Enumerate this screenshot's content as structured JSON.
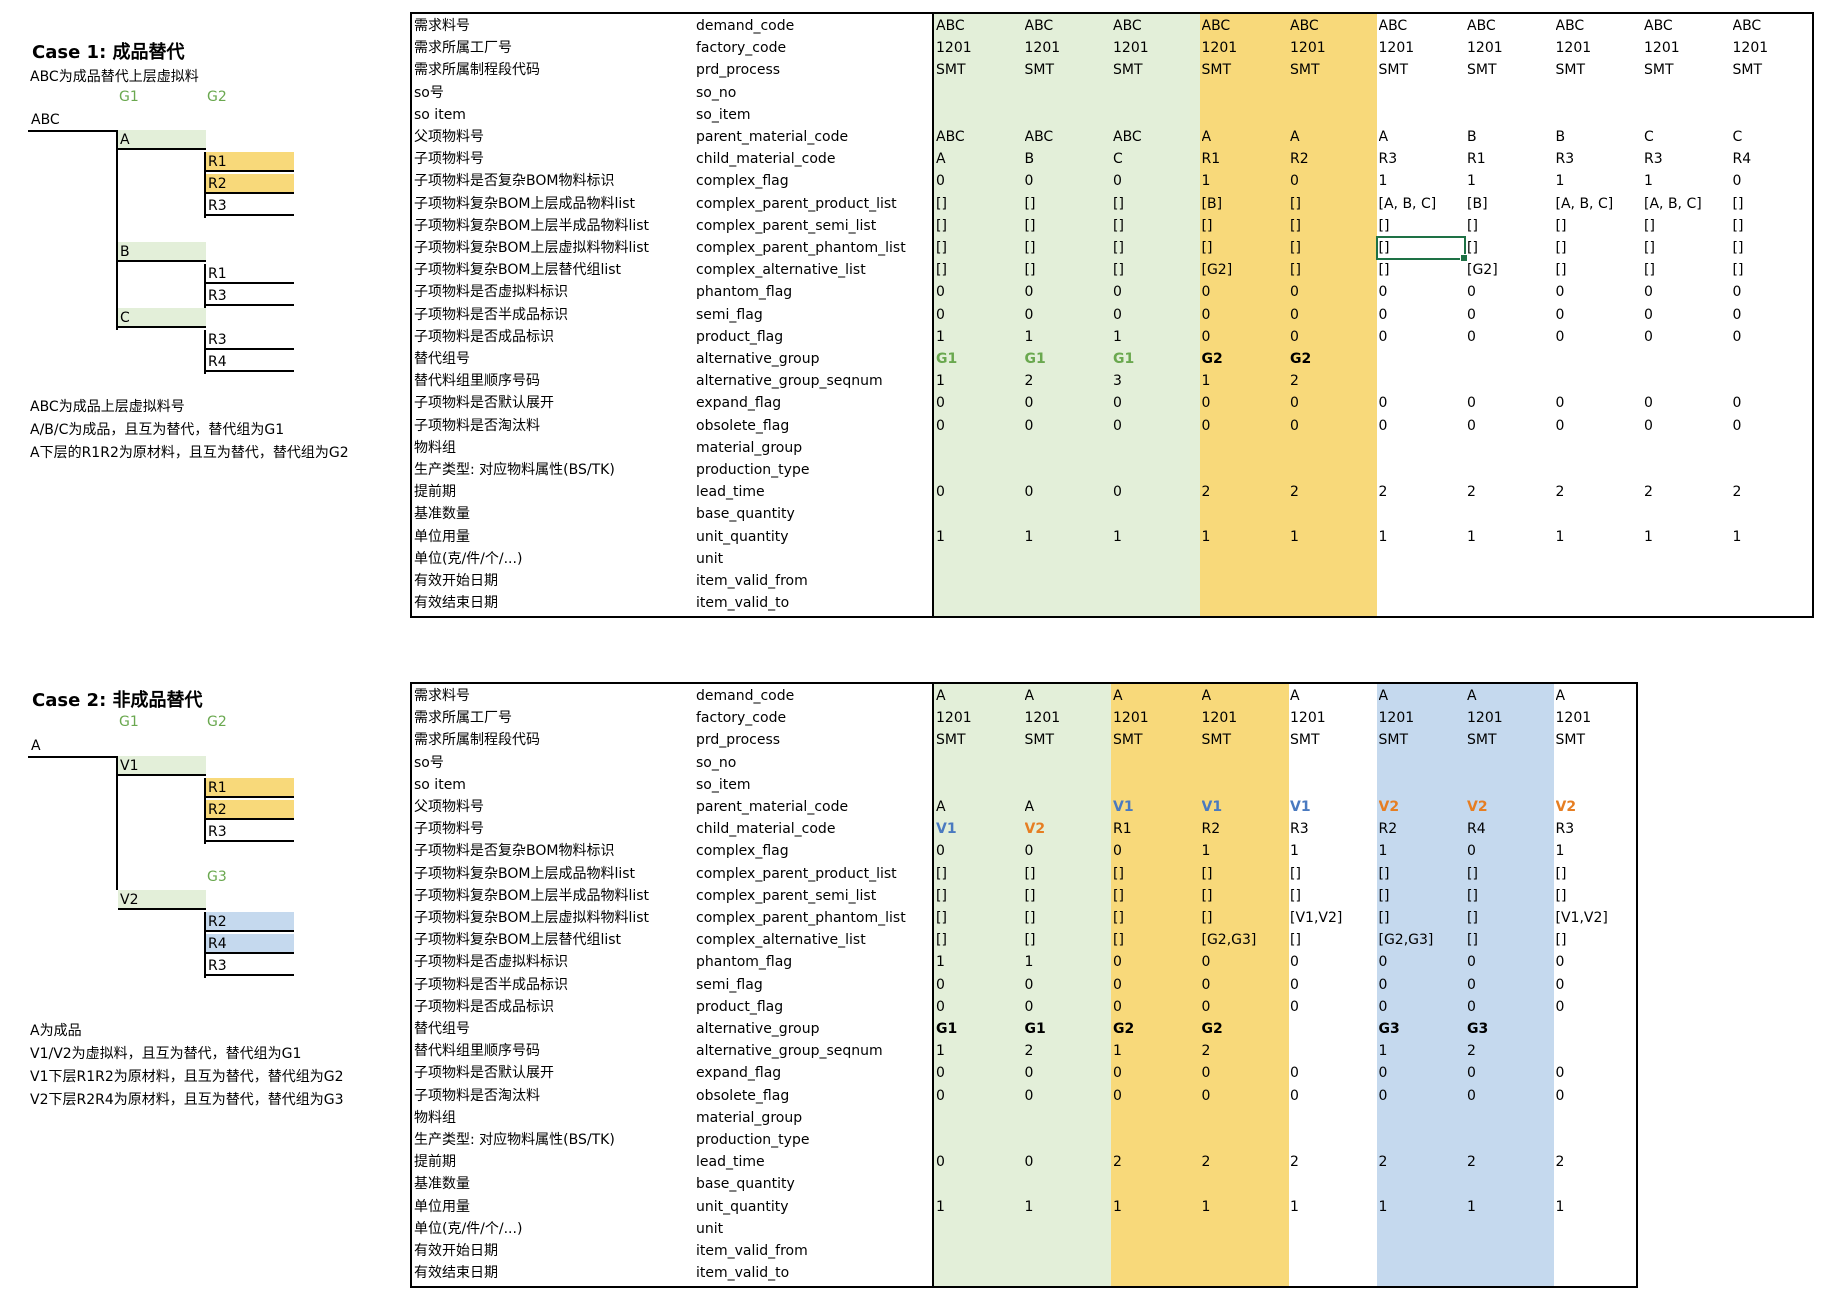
{
  "case1": {
    "title": "Case 1: 成品替代",
    "subtitle": "ABC为成品替代上层虚拟料",
    "group_labels": [
      "G1",
      "G2"
    ],
    "tree": {
      "root": "ABC",
      "nodes": [
        {
          "label": "A",
          "level": 1
        },
        {
          "label": "R1",
          "level": 2
        },
        {
          "label": "R2",
          "level": 2
        },
        {
          "label": "R3",
          "level": 2
        },
        {
          "label": "B",
          "level": 1
        },
        {
          "label": "R1",
          "level": 2
        },
        {
          "label": "R3",
          "level": 2
        },
        {
          "label": "C",
          "level": 1
        },
        {
          "label": "R3",
          "level": 2
        },
        {
          "label": "R4",
          "level": 2
        }
      ]
    },
    "notes": [
      "ABC为成品上层虚拟料号",
      "A/B/C为成品，且互为替代，替代组为G1",
      "A下层的R1R2为原材料，且互为替代，替代组为G2"
    ],
    "colors": {
      "green": "#e3efd9",
      "orange": "#f8d97a"
    },
    "columns": [
      [
        "ABC",
        "1201",
        "SMT",
        "",
        "",
        "ABC",
        "A",
        "0",
        "[]",
        "[]",
        "[]",
        "[]",
        "0",
        "0",
        "1",
        "G1",
        "1",
        "0",
        "0",
        "",
        "",
        "0",
        "",
        "1",
        "",
        "",
        ""
      ],
      [
        "ABC",
        "1201",
        "SMT",
        "",
        "",
        "ABC",
        "B",
        "0",
        "[]",
        "[]",
        "[]",
        "[]",
        "0",
        "0",
        "1",
        "G1",
        "2",
        "0",
        "0",
        "",
        "",
        "0",
        "",
        "1",
        "",
        "",
        ""
      ],
      [
        "ABC",
        "1201",
        "SMT",
        "",
        "",
        "ABC",
        "C",
        "0",
        "[]",
        "[]",
        "[]",
        "[]",
        "0",
        "0",
        "1",
        "G1",
        "3",
        "0",
        "0",
        "",
        "",
        "0",
        "",
        "1",
        "",
        "",
        ""
      ],
      [
        "ABC",
        "1201",
        "SMT",
        "",
        "",
        "A",
        "R1",
        "1",
        "[B]",
        "[]",
        "[]",
        "[G2]",
        "0",
        "0",
        "0",
        "G2",
        "1",
        "0",
        "0",
        "",
        "",
        "2",
        "",
        "1",
        "",
        "",
        ""
      ],
      [
        "ABC",
        "1201",
        "SMT",
        "",
        "",
        "A",
        "R2",
        "0",
        "[]",
        "[]",
        "[]",
        "[]",
        "0",
        "0",
        "0",
        "G2",
        "2",
        "0",
        "0",
        "",
        "",
        "2",
        "",
        "1",
        "",
        "",
        ""
      ],
      [
        "ABC",
        "1201",
        "SMT",
        "",
        "",
        "A",
        "R3",
        "1",
        "[A, B, C]",
        "[]",
        "[]",
        "[]",
        "0",
        "0",
        "0",
        "",
        "",
        "0",
        "0",
        "",
        "",
        "2",
        "",
        "1",
        "",
        "",
        ""
      ],
      [
        "ABC",
        "1201",
        "SMT",
        "",
        "",
        "B",
        "R1",
        "1",
        "[B]",
        "[]",
        "[]",
        "[G2]",
        "0",
        "0",
        "0",
        "",
        "",
        "0",
        "0",
        "",
        "",
        "2",
        "",
        "1",
        "",
        "",
        ""
      ],
      [
        "ABC",
        "1201",
        "SMT",
        "",
        "",
        "B",
        "R3",
        "1",
        "[A, B, C]",
        "[]",
        "[]",
        "[]",
        "0",
        "0",
        "0",
        "",
        "",
        "0",
        "0",
        "",
        "",
        "2",
        "",
        "1",
        "",
        "",
        ""
      ],
      [
        "ABC",
        "1201",
        "SMT",
        "",
        "",
        "C",
        "R3",
        "1",
        "[A, B, C]",
        "[]",
        "[]",
        "[]",
        "0",
        "0",
        "0",
        "",
        "",
        "0",
        "0",
        "",
        "",
        "2",
        "",
        "1",
        "",
        "",
        ""
      ],
      [
        "ABC",
        "1201",
        "SMT",
        "",
        "",
        "C",
        "R4",
        "0",
        "[]",
        "[]",
        "[]",
        "[]",
        "0",
        "0",
        "0",
        "",
        "",
        "0",
        "0",
        "",
        "",
        "2",
        "",
        "1",
        "",
        "",
        ""
      ]
    ]
  },
  "case2": {
    "title": "Case 2: 非成品替代",
    "group_labels": [
      "G1",
      "G2",
      "G3"
    ],
    "tree": {
      "root": "A",
      "nodes": [
        {
          "label": "V1",
          "level": 1
        },
        {
          "label": "R1",
          "level": 2
        },
        {
          "label": "R2",
          "level": 2
        },
        {
          "label": "R3",
          "level": 2
        },
        {
          "label": "V2",
          "level": 1
        },
        {
          "label": "R2",
          "level": 2
        },
        {
          "label": "R4",
          "level": 2
        },
        {
          "label": "R3",
          "level": 2
        }
      ]
    },
    "notes": [
      "A为成品",
      "V1/V2为虚拟料，且互为替代，替代组为G1",
      "V1下层R1R2为原材料，且互为替代，替代组为G2",
      "V2下层R2R4为原材料，且互为替代，替代组为G3"
    ],
    "colors": {
      "green": "#e3efd9",
      "orange": "#f8d97a",
      "blue": "#c5d9ee",
      "v1_blue": "#4a7ac0",
      "v2_orange": "#e67e22"
    },
    "columns": [
      [
        "A",
        "1201",
        "SMT",
        "",
        "",
        "A",
        "V1",
        "0",
        "[]",
        "[]",
        "[]",
        "[]",
        "1",
        "0",
        "0",
        "G1",
        "1",
        "0",
        "0",
        "",
        "",
        "0",
        "",
        "1",
        "",
        "",
        ""
      ],
      [
        "A",
        "1201",
        "SMT",
        "",
        "",
        "A",
        "V2",
        "0",
        "[]",
        "[]",
        "[]",
        "[]",
        "1",
        "0",
        "0",
        "G1",
        "2",
        "0",
        "0",
        "",
        "",
        "0",
        "",
        "1",
        "",
        "",
        ""
      ],
      [
        "A",
        "1201",
        "SMT",
        "",
        "",
        "V1",
        "R1",
        "0",
        "[]",
        "[]",
        "[]",
        "[]",
        "0",
        "0",
        "0",
        "G2",
        "1",
        "0",
        "0",
        "",
        "",
        "2",
        "",
        "1",
        "",
        "",
        ""
      ],
      [
        "A",
        "1201",
        "SMT",
        "",
        "",
        "V1",
        "R2",
        "1",
        "[]",
        "[]",
        "[]",
        "[G2,G3]",
        "0",
        "0",
        "0",
        "G2",
        "2",
        "0",
        "0",
        "",
        "",
        "2",
        "",
        "1",
        "",
        "",
        ""
      ],
      [
        "A",
        "1201",
        "SMT",
        "",
        "",
        "V1",
        "R3",
        "1",
        "[]",
        "[]",
        "[V1,V2]",
        "[]",
        "0",
        "0",
        "0",
        "",
        "",
        "0",
        "0",
        "",
        "",
        "2",
        "",
        "1",
        "",
        "",
        ""
      ],
      [
        "A",
        "1201",
        "SMT",
        "",
        "",
        "V2",
        "R2",
        "1",
        "[]",
        "[]",
        "[]",
        "[G2,G3]",
        "0",
        "0",
        "0",
        "G3",
        "1",
        "0",
        "0",
        "",
        "",
        "2",
        "",
        "1",
        "",
        "",
        ""
      ],
      [
        "A",
        "1201",
        "SMT",
        "",
        "",
        "V2",
        "R4",
        "0",
        "[]",
        "[]",
        "[]",
        "[]",
        "0",
        "0",
        "0",
        "G3",
        "2",
        "0",
        "0",
        "",
        "",
        "2",
        "",
        "1",
        "",
        "",
        ""
      ],
      [
        "A",
        "1201",
        "SMT",
        "",
        "",
        "V2",
        "R3",
        "1",
        "[]",
        "[]",
        "[V1,V2]",
        "[]",
        "0",
        "0",
        "0",
        "",
        "",
        "0",
        "0",
        "",
        "",
        "2",
        "",
        "1",
        "",
        "",
        ""
      ]
    ]
  },
  "fields_cn": [
    "需求料号",
    "需求所属工厂号",
    "需求所属制程段代码",
    "so号",
    "so item",
    "父项物料号",
    "子项物料号",
    "子项物料是否复杂BOM物料标识",
    "子项物料复杂BOM上层成品物料list",
    "子项物料复杂BOM上层半成品物料list",
    "子项物料复杂BOM上层虚拟料物料list",
    "子项物料复杂BOM上层替代组list",
    "子项物料是否虚拟料标识",
    "子项物料是否半成品标识",
    "子项物料是否成品标识",
    "替代组号",
    "替代料组里顺序号码",
    "子项物料是否默认展开",
    "子项物料是否淘汰料",
    "物料组",
    "生产类型: 对应物料属性(BS/TK)",
    "提前期",
    "基准数量",
    "单位用量",
    "单位(克/件/个/...)",
    "有效开始日期",
    "有效结束日期"
  ],
  "fields_en": [
    "demand_code",
    "factory_code",
    "prd_process",
    "so_no",
    "so_item",
    "parent_material_code",
    "child_material_code",
    "complex_flag",
    "complex_parent_product_list",
    "complex_parent_semi_list",
    "complex_parent_phantom_list",
    "complex_alternative_list",
    "phantom_flag",
    "semi_flag",
    "product_flag",
    "alternative_group",
    "alternative_group_seqnum",
    "expand_flag",
    "obsolete_flag",
    "material_group",
    "production_type",
    "lead_time",
    "base_quantity",
    "unit_quantity",
    "unit",
    "item_valid_from",
    "item_valid_to"
  ]
}
